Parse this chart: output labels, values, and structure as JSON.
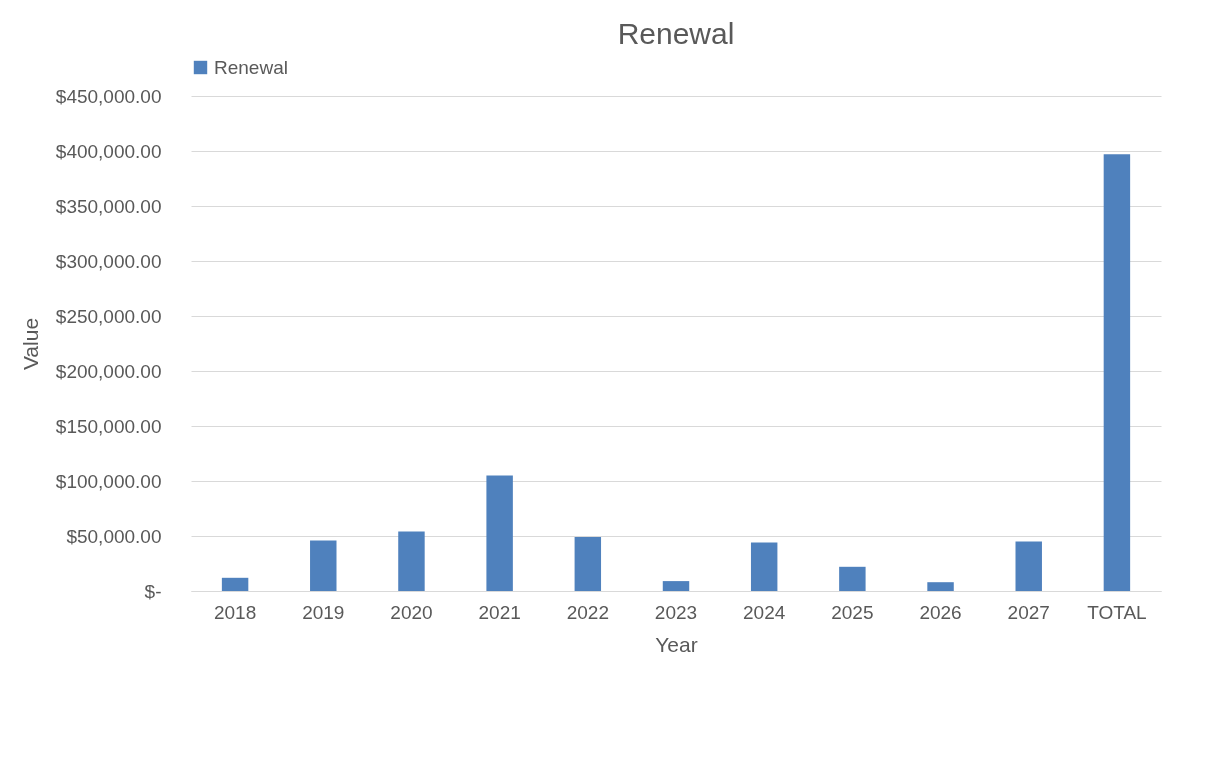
{
  "chart_data": {
    "type": "bar",
    "title": "Renewal",
    "xlabel": "Year",
    "ylabel": "Value",
    "categories": [
      "2018",
      "2019",
      "2020",
      "2021",
      "2022",
      "2023",
      "2024",
      "2025",
      "2026",
      "2027",
      "TOTAL"
    ],
    "series": [
      {
        "name": "Renewal",
        "color": "#4f81bd",
        "values": [
          12000,
          46000,
          54000,
          105000,
          49000,
          9000,
          44000,
          22000,
          8000,
          45000,
          397000
        ]
      }
    ],
    "ylim": [
      0,
      450000
    ],
    "yticks": [
      {
        "value": 0,
        "label": "$-"
      },
      {
        "value": 50000,
        "label": "$50,000.00"
      },
      {
        "value": 100000,
        "label": "$100,000.00"
      },
      {
        "value": 150000,
        "label": "$150,000.00"
      },
      {
        "value": 200000,
        "label": "$200,000.00"
      },
      {
        "value": 250000,
        "label": "$250,000.00"
      },
      {
        "value": 300000,
        "label": "$300,000.00"
      },
      {
        "value": 350000,
        "label": "$350,000.00"
      },
      {
        "value": 400000,
        "label": "$400,000.00"
      },
      {
        "value": 450000,
        "label": "$450,000.00"
      }
    ],
    "grid": "y",
    "legend": "top"
  }
}
